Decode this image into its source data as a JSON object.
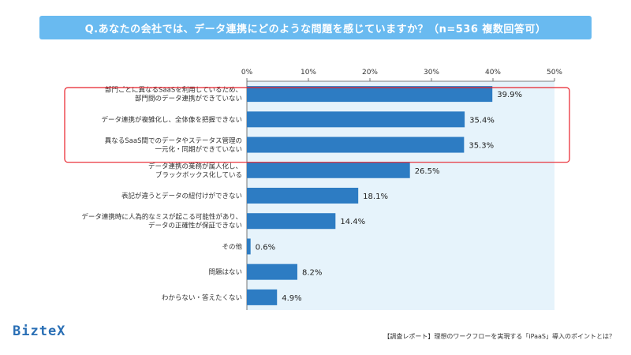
{
  "title": "Q.あなたの会社では、データ連携にどのような問題を感じていますか？（n=536 複数回答可）",
  "logo": "BizteX",
  "footer": "【調査レポート】理想のワークフローを実現する「iPaaS」導入のポイントとは？",
  "colors": {
    "bar": "#2d7cc3",
    "plot_bg": "#e6f3fb",
    "highlight": "#e8202a",
    "title_bg": "#69baf0"
  },
  "chart_data": {
    "type": "bar",
    "orientation": "horizontal",
    "xlim": [
      0,
      50
    ],
    "ticks": [
      "0%",
      "10%",
      "20%",
      "30%",
      "40%",
      "50%"
    ],
    "tick_values": [
      0,
      10,
      20,
      30,
      40,
      50
    ],
    "highlight_top_n": 3,
    "categories": [
      [
        "部門ごとに異なるSaaSを利用しているため、",
        "部門間のデータ連携ができていない"
      ],
      [
        "データ連携が複雑化し、全体像を把握できない"
      ],
      [
        "異なるSaaS間でのデータやステータス管理の",
        "一元化・同期ができていない"
      ],
      [
        "データ連携の業務が属人化し、",
        "ブラックボックス化している"
      ],
      [
        "表記が違うとデータの紐付けができない"
      ],
      [
        "データ連携時に人為的なミスが起こる可能性があり、",
        "データの正確性が保証できない"
      ],
      [
        "その他"
      ],
      [
        "問題はない"
      ],
      [
        "わからない・答えたくない"
      ]
    ],
    "values": [
      39.9,
      35.4,
      35.3,
      26.5,
      18.1,
      14.4,
      0.6,
      8.2,
      4.9
    ],
    "value_labels": [
      "39.9%",
      "35.4%",
      "35.3%",
      "26.5%",
      "18.1%",
      "14.4%",
      "0.6%",
      "8.2%",
      "4.9%"
    ]
  }
}
